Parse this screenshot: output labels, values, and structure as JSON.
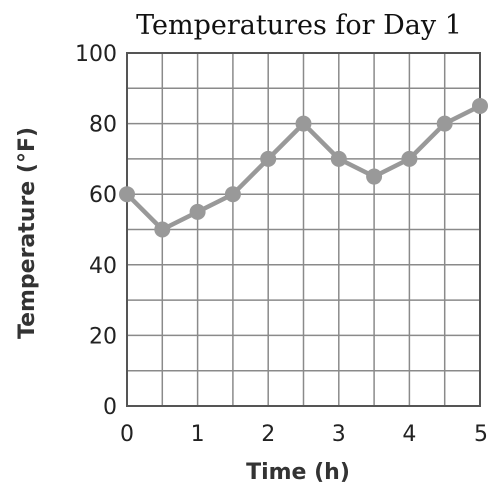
{
  "chart_data": {
    "type": "line",
    "title": "Temperatures for Day 1",
    "xlabel": "Time (h)",
    "ylabel": "Temperature (°F)",
    "xlim": [
      0,
      5
    ],
    "ylim": [
      0,
      100
    ],
    "x_ticks": [
      "0",
      "1",
      "2",
      "3",
      "4",
      "5"
    ],
    "y_ticks": [
      "0",
      "20",
      "40",
      "60",
      "80",
      "100"
    ],
    "grid": true,
    "series": [
      {
        "x": [
          0,
          0.5,
          1,
          1.5,
          2,
          2.5,
          3,
          3.5,
          4,
          4.5,
          5
        ],
        "y": [
          60,
          50,
          55,
          60,
          70,
          80,
          70,
          65,
          70,
          80,
          85
        ],
        "color": "#999999"
      }
    ]
  }
}
